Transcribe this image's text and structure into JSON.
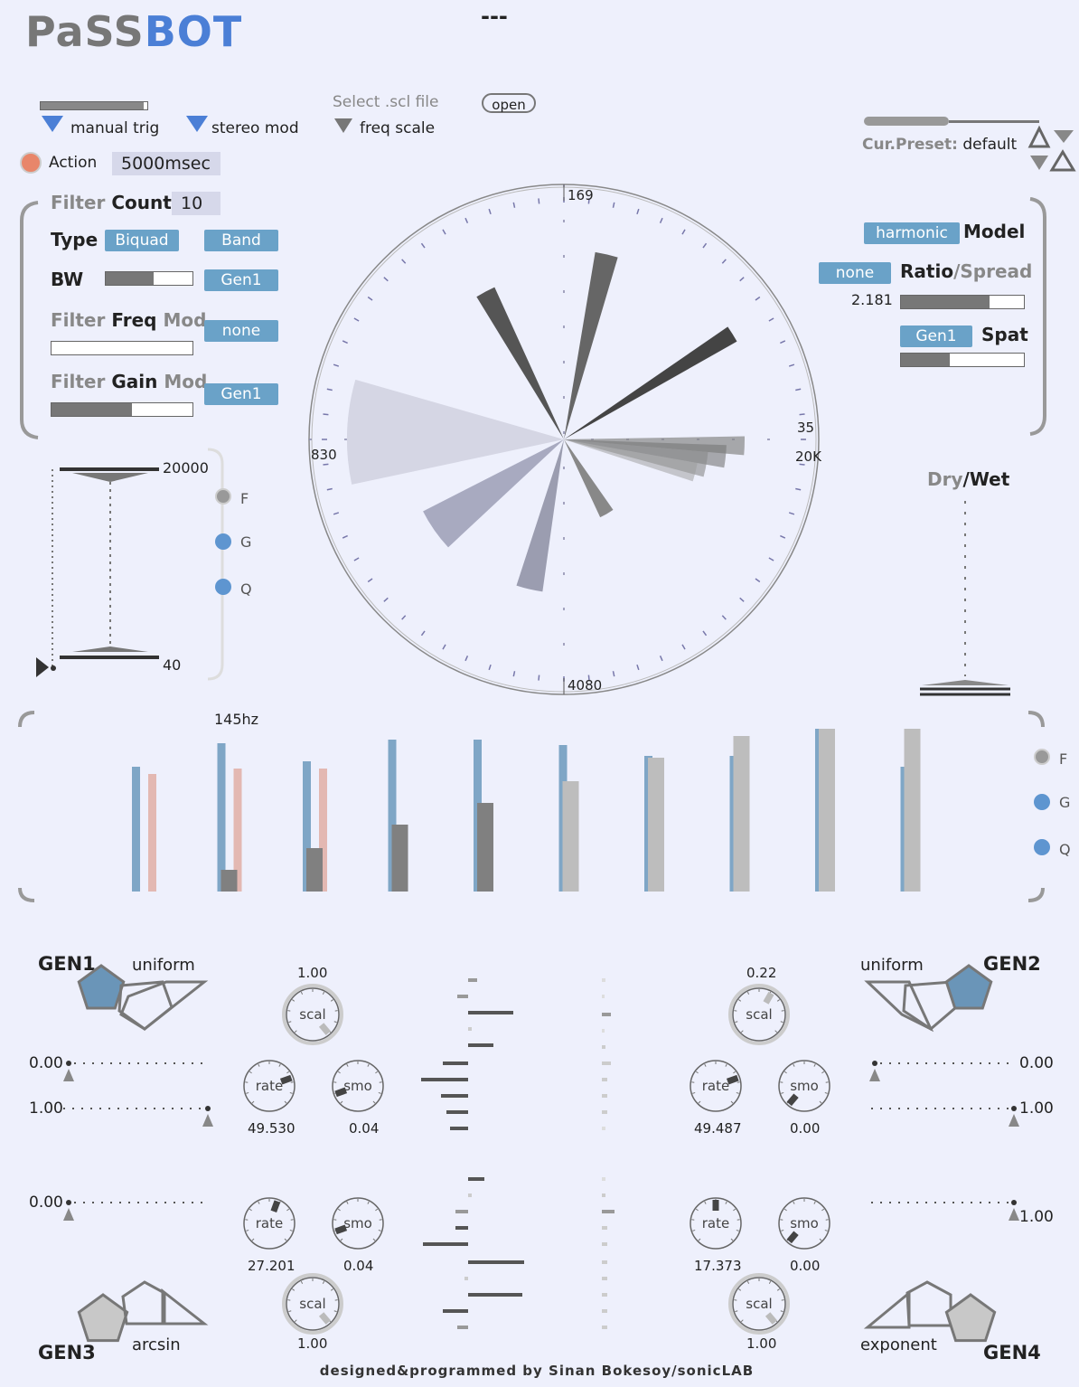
{
  "app": {
    "title_part1": "PaSS",
    "title_part2": "BOT",
    "center_label": "---",
    "footer": "designed&programmed by Sinan Bokesoy/sonicLAB"
  },
  "top": {
    "manual_trig": "manual trig",
    "stereo_mod": "stereo mod",
    "select_scl": "Select .scl file",
    "open_btn": "open",
    "freq_scale": "freq scale",
    "action": "Action",
    "action_time": "5000msec",
    "cur_preset_label": "Cur.Preset:",
    "cur_preset_value": "default"
  },
  "filter": {
    "count_label1": "Filter",
    "count_label2": "Count",
    "count_value": "10",
    "type_label": "Type",
    "type_value": "Biquad",
    "type_mode": "Band",
    "bw_label": "BW",
    "bw_source": "Gen1",
    "bw_level": 0.55,
    "freq_mod_label1": "Filter",
    "freq_mod_label2": "Freq",
    "freq_mod_label3": "Mod",
    "freq_mod_source": "none",
    "freq_mod_level": 0.0,
    "gain_mod_label1": "Filter",
    "gain_mod_label2": "Gain",
    "gain_mod_label3": "Mod",
    "gain_mod_source": "Gen1",
    "gain_mod_level": 0.57
  },
  "model": {
    "model_value": "harmonic",
    "model_label": "Model",
    "ratio_source": "none",
    "ratio_label1": "Ratio",
    "ratio_label2": "/Spread",
    "ratio_value": "2.181",
    "ratio_level": 0.72,
    "spat_source": "Gen1",
    "spat_label": "Spat",
    "spat_level": 0.4
  },
  "range": {
    "max": "20000",
    "min": "40",
    "f": "F",
    "g": "G",
    "q": "Q"
  },
  "polar": {
    "top": "169",
    "left": "830",
    "right_top": "35",
    "right": "20K",
    "bottom": "4080"
  },
  "drywet": {
    "label1": "Dry",
    "label2": "/Wet"
  },
  "bars": {
    "label": "145hz",
    "f": "F",
    "g": "G",
    "q": "Q"
  },
  "gens": {
    "gen1": {
      "name": "GEN1",
      "dist": "uniform",
      "min": "0.00",
      "max": "1.00",
      "scal": "1.00",
      "rate": "49.530",
      "smo": "0.04"
    },
    "gen2": {
      "name": "GEN2",
      "dist": "uniform",
      "min": "0.00",
      "max": "1.00",
      "scal": "0.22",
      "rate": "49.487",
      "smo": "0.00"
    },
    "gen3": {
      "name": "GEN3",
      "dist": "arcsin",
      "min": "0.00",
      "scal": "1.00",
      "rate": "27.201",
      "smo": "0.04"
    },
    "gen4": {
      "name": "GEN4",
      "dist": "exponent",
      "max": "1.00",
      "scal": "1.00",
      "rate": "17.373",
      "smo": "0.00"
    },
    "knob_rate": "rate",
    "knob_smo": "smo",
    "knob_scal": "scal"
  }
}
